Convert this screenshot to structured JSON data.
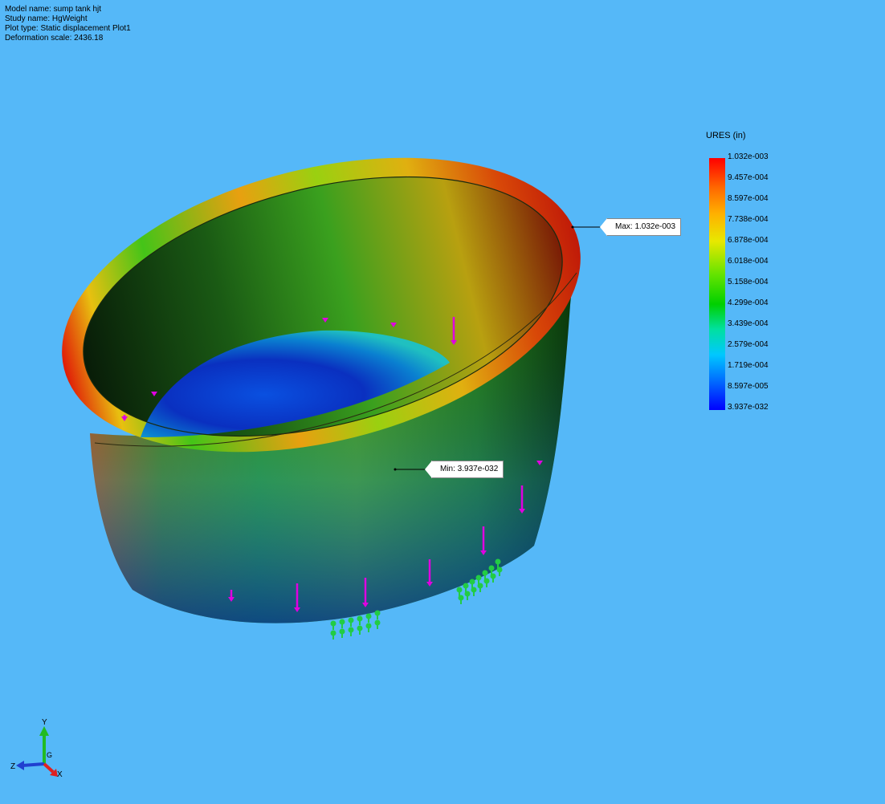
{
  "model_info": {
    "model_name": "Model name: sump tank hjt",
    "study_name": "Study name: HgWeight",
    "plot_type": "Plot type: Static displacement Plot1",
    "deformation_scale": "Deformation scale: 2436.18"
  },
  "legend": {
    "title": "URES (in)",
    "labels": [
      "1.032e-003",
      "9.457e-004",
      "8.597e-004",
      "7.738e-004",
      "6.878e-004",
      "6.018e-004",
      "5.158e-004",
      "4.299e-004",
      "3.439e-004",
      "2.579e-004",
      "1.719e-004",
      "8.597e-005",
      "3.937e-032"
    ],
    "colors": [
      "#ff0000",
      "#ff6a00",
      "#ffb000",
      "#e8e800",
      "#66e400",
      "#00d000",
      "#00e0a0",
      "#00c8ff",
      "#0070ff",
      "#0000ff"
    ]
  },
  "callouts": {
    "max": "Max: 1.032e-003",
    "min": "Min: 3.937e-032"
  },
  "axes": {
    "y": "Y",
    "z": "Z",
    "x": "X",
    "g": "G"
  },
  "colors": {
    "background": "#55b8f8",
    "load_arrow": "#e000e0",
    "fixture": "#22cc44"
  }
}
